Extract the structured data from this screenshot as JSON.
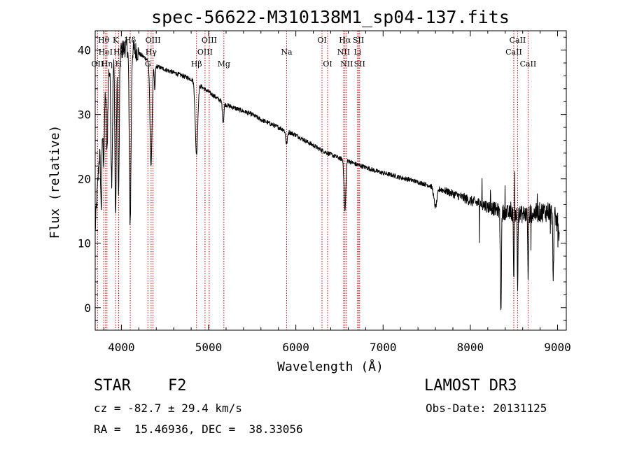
{
  "chart_data": {
    "type": "line",
    "title": "spec-56622-M310138M1_sp04-137.fits",
    "xlabel": "Wavelength (Å)",
    "ylabel": "Flux (relative)",
    "xlim": [
      3700,
      9100
    ],
    "ylim": [
      -3.5,
      43
    ],
    "x_ticks": [
      4000,
      5000,
      6000,
      7000,
      8000,
      9000
    ],
    "y_ticks": [
      0,
      10,
      20,
      30,
      40
    ],
    "x_minor_step": 200,
    "y_minor_step": 2,
    "continuum": [
      [
        3700,
        12
      ],
      [
        3740,
        22
      ],
      [
        3780,
        31
      ],
      [
        3820,
        35
      ],
      [
        3860,
        37
      ],
      [
        3900,
        38.5
      ],
      [
        3950,
        39.5
      ],
      [
        4000,
        40
      ],
      [
        4050,
        40.5
      ],
      [
        4100,
        40.5
      ],
      [
        4150,
        40
      ],
      [
        4200,
        39.5
      ],
      [
        4300,
        38.5
      ],
      [
        4400,
        37.5
      ],
      [
        4500,
        37
      ],
      [
        4600,
        36.5
      ],
      [
        4700,
        36
      ],
      [
        4800,
        35.5
      ],
      [
        4900,
        34.5
      ],
      [
        5000,
        33.5
      ],
      [
        5100,
        32.5
      ],
      [
        5200,
        31.5
      ],
      [
        5300,
        31
      ],
      [
        5400,
        30.5
      ],
      [
        5500,
        30
      ],
      [
        5600,
        29.2
      ],
      [
        5700,
        28.6
      ],
      [
        5800,
        28
      ],
      [
        5900,
        27.4
      ],
      [
        6000,
        26.8
      ],
      [
        6100,
        26
      ],
      [
        6200,
        25.2
      ],
      [
        6300,
        24.4
      ],
      [
        6400,
        23.8
      ],
      [
        6500,
        23.2
      ],
      [
        6600,
        22.8
      ],
      [
        6700,
        22.2
      ],
      [
        6800,
        21.8
      ],
      [
        6900,
        21.3
      ],
      [
        7000,
        20.9
      ],
      [
        7100,
        20.6
      ],
      [
        7200,
        20.2
      ],
      [
        7300,
        19.9
      ],
      [
        7400,
        19.5
      ],
      [
        7500,
        19.1
      ],
      [
        7600,
        18.7
      ],
      [
        7700,
        18.2
      ],
      [
        7800,
        17.7
      ],
      [
        7900,
        17.2
      ],
      [
        8000,
        16.6
      ],
      [
        8100,
        16.2
      ],
      [
        8200,
        15.7
      ],
      [
        8300,
        15.2
      ],
      [
        8400,
        14.8
      ],
      [
        8500,
        14.6
      ],
      [
        8600,
        14.5
      ],
      [
        8700,
        14.6
      ],
      [
        8800,
        14.8
      ],
      [
        8900,
        15
      ],
      [
        8950,
        14.6
      ],
      [
        9000,
        13
      ],
      [
        9020,
        12
      ]
    ],
    "absorption_features": [
      [
        3770,
        13,
        8
      ],
      [
        3798,
        10,
        8
      ],
      [
        3835,
        12,
        8
      ],
      [
        3889,
        18,
        9
      ],
      [
        3934,
        25,
        8
      ],
      [
        3968,
        22,
        8
      ],
      [
        4101,
        27,
        10
      ],
      [
        4340,
        16,
        12
      ],
      [
        4383,
        4,
        6
      ],
      [
        4861,
        11,
        14
      ],
      [
        5167,
        3,
        8
      ],
      [
        5893,
        2,
        10
      ],
      [
        6563,
        8,
        10
      ],
      [
        7600,
        3,
        18
      ],
      [
        8350,
        16,
        6
      ],
      [
        8498,
        10,
        4
      ],
      [
        8542,
        12,
        4
      ],
      [
        8662,
        10,
        4
      ],
      [
        8950,
        9,
        6
      ]
    ],
    "line_markers": [
      {
        "label": "Hθ",
        "x": 3797,
        "row": 1
      },
      {
        "label": "OII",
        "x": 3727,
        "row": 3
      },
      {
        "label": "HeI",
        "x": 3819,
        "row": 2
      },
      {
        "label": "Hη",
        "x": 3835,
        "row": 3
      },
      {
        "label": "K",
        "x": 3934,
        "row": 1
      },
      {
        "label": "Hε",
        "x": 3970,
        "row": 2
      },
      {
        "label": "H",
        "x": 3968,
        "row": 3
      },
      {
        "label": "Hδ",
        "x": 4102,
        "row": 1
      },
      {
        "label": "Hγ",
        "x": 4341,
        "row": 2
      },
      {
        "label": "G",
        "x": 4304,
        "row": 3
      },
      {
        "label": "OIII",
        "x": 4363,
        "row": 1
      },
      {
        "label": "Hβ",
        "x": 4861,
        "row": 4
      },
      {
        "label": "OIII",
        "x": 4959,
        "row": 2
      },
      {
        "label": "OIII",
        "x": 5007,
        "row": 1
      },
      {
        "label": "Mg",
        "x": 5175,
        "row": 4
      },
      {
        "label": "Na",
        "x": 5894,
        "row": 2
      },
      {
        "label": "OI",
        "x": 6300,
        "row": 1
      },
      {
        "label": "OI",
        "x": 6364,
        "row": 3
      },
      {
        "label": "Hα",
        "x": 6563,
        "row": 1
      },
      {
        "label": "NII",
        "x": 6548,
        "row": 2
      },
      {
        "label": "NII",
        "x": 6583,
        "row": 3
      },
      {
        "label": "SII",
        "x": 6717,
        "row": 1
      },
      {
        "label": "Li",
        "x": 6708,
        "row": 2
      },
      {
        "label": "SII",
        "x": 6731,
        "row": 3
      },
      {
        "label": "CaII",
        "x": 8498,
        "row": 2
      },
      {
        "label": "CaII",
        "x": 8542,
        "row": 1
      },
      {
        "label": "CaII",
        "x": 8662,
        "row": 4
      }
    ]
  },
  "info": {
    "object_class": "STAR",
    "subclass": "F2",
    "survey": "LAMOST DR3",
    "redshift_line": "cz = -82.7 ± 29.4 km/s",
    "obs_date_line": "Obs-Date: 20131125",
    "coords_line": "RA =  15.46936, DEC =  38.33056"
  }
}
